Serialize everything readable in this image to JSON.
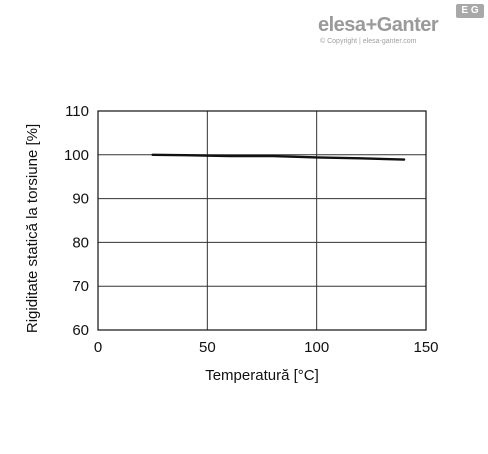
{
  "logo": {
    "brand_a": "elesa",
    "plus": "+",
    "brand_b": "Ganter",
    "badge": "E G",
    "copyright": "© Copyright | elesa-ganter.com"
  },
  "colors": {
    "line": "#111111",
    "grid": "#333333",
    "frame": "#111111",
    "logo": "#9a9a9a"
  },
  "chart_data": {
    "type": "line",
    "title": "",
    "xlabel": "Temperatură [°C]",
    "ylabel": "Rigiditate statică la torsiune [%]",
    "xlim": [
      0,
      150
    ],
    "ylim": [
      60,
      110
    ],
    "xticks": [
      0,
      50,
      100,
      150
    ],
    "yticks": [
      60,
      70,
      80,
      90,
      100,
      110
    ],
    "grid": true,
    "series": [
      {
        "x": [
          25,
          40,
          60,
          80,
          100,
          120,
          140
        ],
        "y": [
          100,
          99.9,
          99.7,
          99.7,
          99.4,
          99.2,
          98.9
        ]
      }
    ]
  }
}
